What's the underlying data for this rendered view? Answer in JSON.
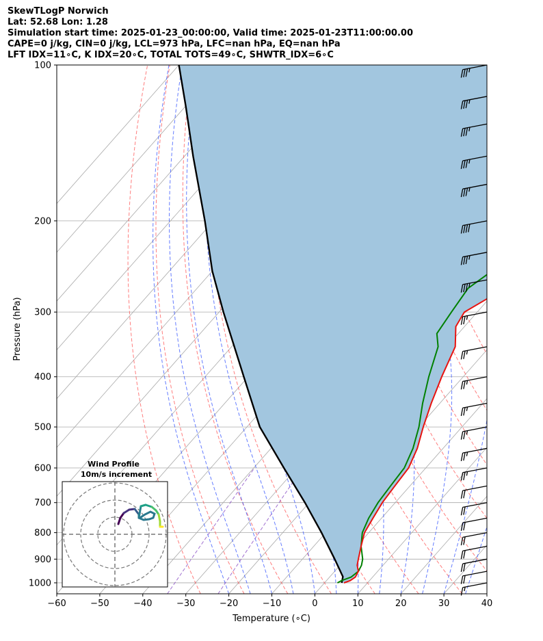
{
  "header": {
    "line1": "SkewTLogP Norwich",
    "line2": "Lat: 52.68   Lon: 1.28",
    "line3": "Simulation start time: 2025-01-23_00:00:00, Valid time: 2025-01-23T11:00:00.00",
    "line4": "CAPE=0 j/kg, CIN=0 j/kg, LCL=973 hPa, LFC=nan hPa, EQ=nan hPa",
    "line5": "LFT IDX=11∘C, K IDX=20∘C, TOTAL TOTS=49∘C, SHWTR_IDX=6∘C"
  },
  "chart_data": {
    "type": "line",
    "subtype": "skew-t log-p",
    "xlabel": "Temperature (∘C)",
    "ylabel": "Pressure (hPa)",
    "xlim": [
      -60,
      40
    ],
    "ylim": [
      1050,
      100
    ],
    "xticks": [
      -60,
      -50,
      -40,
      -30,
      -20,
      -10,
      0,
      10,
      20,
      30,
      40
    ],
    "yticks": [
      100,
      200,
      300,
      400,
      500,
      600,
      700,
      800,
      900,
      1000
    ],
    "grid": true,
    "colors": {
      "temperature": "#e8130f",
      "dewpoint": "#008000",
      "parcel": "#000000",
      "shade": "#a2c6df",
      "dry_adiabat": "#ff5050",
      "moist_adiabat": "#3050ff",
      "mixing_ratio": "#7f3fbf",
      "isotherm": "#a9a9a9"
    },
    "series": [
      {
        "role": "temperature",
        "pressure": [
          1000,
          990,
          975,
          950,
          925,
          900,
          850,
          800,
          750,
          700,
          650,
          600,
          550,
          500,
          450,
          400,
          350,
          320,
          300,
          280,
          250,
          220,
          200,
          180,
          160,
          140,
          120,
          110,
          100
        ],
        "values": [
          4.5,
          5.5,
          6,
          5.5,
          4,
          3,
          1,
          -1,
          -2,
          -3,
          -3.5,
          -4,
          -6,
          -9,
          -12,
          -15,
          -18,
          -22,
          -23,
          -20,
          -15,
          -10,
          -6,
          0,
          5,
          8.5,
          9,
          10,
          12.5
        ]
      },
      {
        "role": "dewpoint",
        "pressure": [
          1000,
          990,
          975,
          950,
          925,
          900,
          850,
          800,
          750,
          700,
          650,
          600,
          550,
          500,
          450,
          400,
          350,
          330,
          300,
          270,
          250,
          220,
          200,
          180,
          165,
          150,
          140,
          100
        ],
        "values": [
          3,
          3.5,
          5,
          5.5,
          5,
          4,
          1,
          -1.5,
          -3,
          -4,
          -4.5,
          -5,
          -7,
          -10,
          -14,
          -18,
          -22,
          -25,
          -26,
          -27,
          -25,
          -23,
          -22,
          -21,
          -21,
          -21.5,
          -21,
          -3.5
        ]
      },
      {
        "role": "parcel",
        "pressure": [
          1000,
          973,
          900,
          800,
          700,
          600,
          500,
          400,
          300,
          250,
          200,
          150,
          120,
          100
        ],
        "values": [
          4,
          3,
          -2.5,
          -11,
          -21,
          -33,
          -47,
          -61,
          -79,
          -90,
          -102,
          -118,
          -130,
          -140
        ]
      }
    ],
    "wind_barbs": [
      {
        "p": 100,
        "kt": 35
      },
      {
        "p": 115,
        "kt": 35
      },
      {
        "p": 130,
        "kt": 35
      },
      {
        "p": 150,
        "kt": 35
      },
      {
        "p": 170,
        "kt": 35
      },
      {
        "p": 200,
        "kt": 40
      },
      {
        "p": 230,
        "kt": 35
      },
      {
        "p": 260,
        "kt": 35
      },
      {
        "p": 300,
        "kt": 25
      },
      {
        "p": 350,
        "kt": 25
      },
      {
        "p": 400,
        "kt": 25
      },
      {
        "p": 450,
        "kt": 25
      },
      {
        "p": 500,
        "kt": 25
      },
      {
        "p": 550,
        "kt": 25
      },
      {
        "p": 600,
        "kt": 25
      },
      {
        "p": 650,
        "kt": 20
      },
      {
        "p": 700,
        "kt": 20
      },
      {
        "p": 750,
        "kt": 20
      },
      {
        "p": 800,
        "kt": 20
      },
      {
        "p": 850,
        "kt": 20
      },
      {
        "p": 900,
        "kt": 20
      },
      {
        "p": 950,
        "kt": 20
      },
      {
        "p": 1000,
        "kt": 15
      }
    ],
    "hodograph": {
      "title": "Wind Profile",
      "subtitle": "10m/s increment",
      "rings": [
        10,
        20,
        30
      ]
    }
  }
}
